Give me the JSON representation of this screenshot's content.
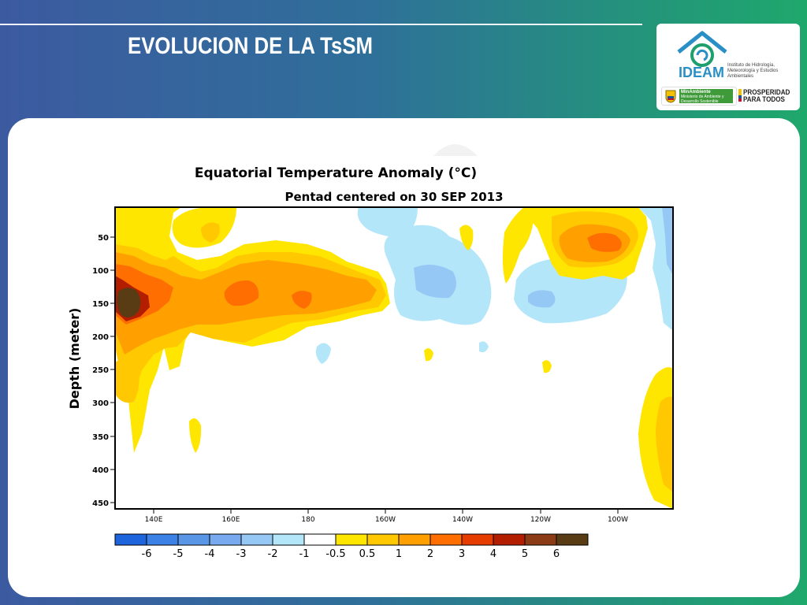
{
  "slide": {
    "title": "EVOLUCION DE LA TsSM"
  },
  "logo": {
    "name": "IDEAM",
    "subtitle": "Instituto de Hidrología, Meteorología y Estudios Ambientales",
    "ministry": "MinAmbiente",
    "ministry_sub": "Ministerio de Ambiente y Desarrollo Sostenible",
    "prosperity_line1": "PROSPERIDAD",
    "prosperity_line2": "PARA TODOS"
  },
  "colors": {
    "brand_blue": "#2a8fc6",
    "brand_green": "#3f9a3a"
  },
  "chart_data": {
    "type": "heatmap",
    "title": "Equatorial Temperature Anomaly (°C)",
    "subtitle": "Pentad centered on 30 SEP 2013",
    "xlabel": "",
    "ylabel": "Depth (meter)",
    "x_ticks": [
      "140E",
      "160E",
      "180",
      "160W",
      "140W",
      "120W",
      "100W"
    ],
    "y_ticks": [
      "50",
      "100",
      "150",
      "200",
      "250",
      "300",
      "350",
      "400",
      "450"
    ],
    "ylim": [
      15,
      460
    ],
    "colorbar": {
      "labels": [
        "-6",
        "-5",
        "-4",
        "-3",
        "-2",
        "-1",
        "-0.5",
        "0.5",
        "1",
        "2",
        "3",
        "4",
        "5",
        "6"
      ],
      "colors": [
        "#1e64dc",
        "#3c82e6",
        "#5a96e6",
        "#78aaf0",
        "#96c8f5",
        "#b4e6fa",
        "#ffffff",
        "#ffe600",
        "#ffc800",
        "#ffa000",
        "#ff6e00",
        "#e63c00",
        "#b41e00",
        "#8c3c14",
        "#5a3c14"
      ]
    },
    "features": [
      {
        "name": "warm core west 140E-180",
        "sign": "warm",
        "peak_anomaly": 6,
        "depth_range_m": [
          60,
          250
        ]
      },
      {
        "name": "warm tongue 170E-170W",
        "sign": "warm",
        "peak_anomaly": 3,
        "depth_range_m": [
          90,
          200
        ]
      },
      {
        "name": "warm pocket 115W-95W",
        "sign": "warm",
        "peak_anomaly": 3,
        "depth_range_m": [
          15,
          100
        ]
      },
      {
        "name": "cool patch 160W-140W",
        "sign": "cool",
        "peak_anomaly": -2,
        "depth_range_m": [
          20,
          180
        ]
      },
      {
        "name": "cool patch near 120W",
        "sign": "cool",
        "peak_anomaly": -2,
        "depth_range_m": [
          130,
          180
        ]
      },
      {
        "name": "warm eastern deep 95W-85W",
        "sign": "warm",
        "peak_anomaly": 2,
        "depth_range_m": [
          250,
          460
        ]
      }
    ]
  }
}
